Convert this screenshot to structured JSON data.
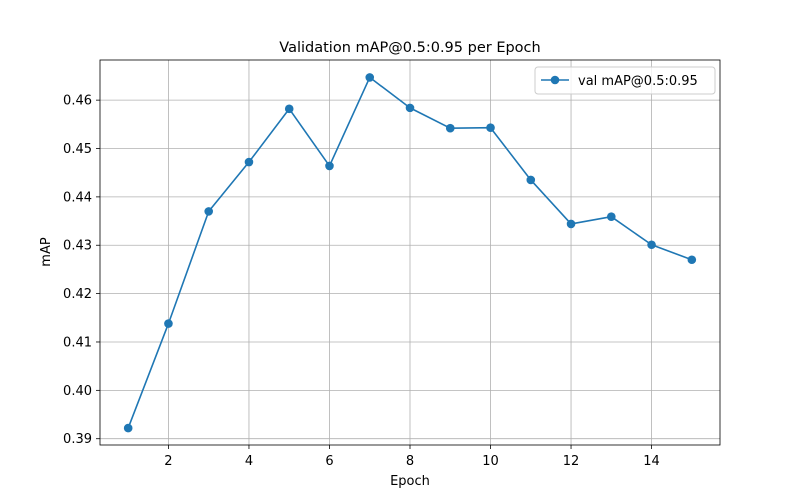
{
  "chart_data": {
    "type": "line",
    "title": "Validation mAP@0.5:0.95 per Epoch",
    "xlabel": "Epoch",
    "ylabel": "mAP",
    "xlim": [
      0.3,
      15.7
    ],
    "ylim": [
      0.3887,
      0.4683
    ],
    "xticks": [
      2,
      4,
      6,
      8,
      10,
      12,
      14
    ],
    "yticks": [
      0.39,
      0.4,
      0.41,
      0.42,
      0.43,
      0.44,
      0.45,
      0.46
    ],
    "ytick_labels": [
      "0.39",
      "0.40",
      "0.41",
      "0.42",
      "0.43",
      "0.44",
      "0.45",
      "0.46"
    ],
    "grid": true,
    "legend_position": "top-right",
    "series": [
      {
        "name": "val mAP@0.5:0.95",
        "color": "#1f77b4",
        "marker": "circle",
        "x": [
          1,
          2,
          3,
          4,
          5,
          6,
          7,
          8,
          9,
          10,
          11,
          12,
          13,
          14,
          15
        ],
        "y": [
          0.3922,
          0.4138,
          0.437,
          0.4472,
          0.4582,
          0.4464,
          0.4647,
          0.4584,
          0.4542,
          0.4543,
          0.4435,
          0.4344,
          0.4359,
          0.4301,
          0.427
        ]
      }
    ]
  }
}
